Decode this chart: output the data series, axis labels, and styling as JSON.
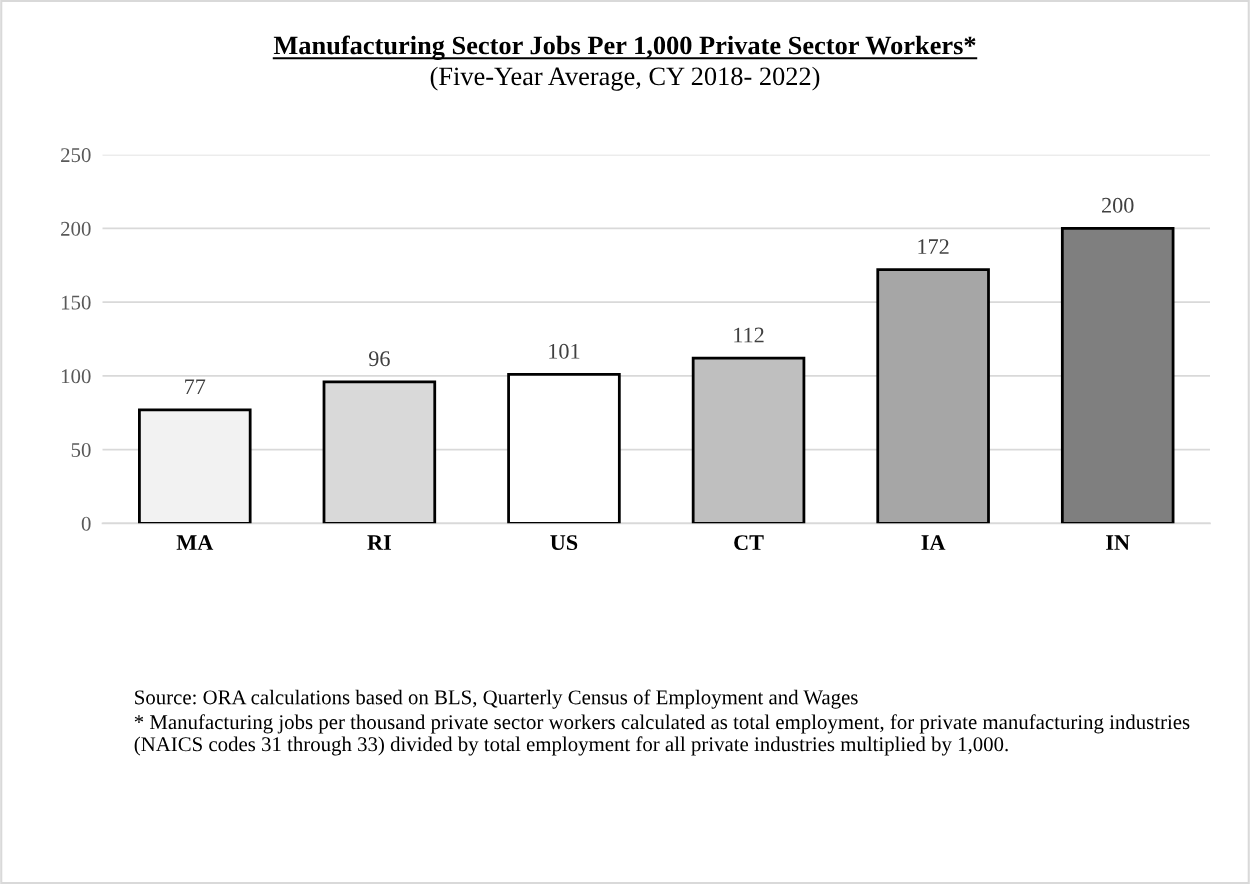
{
  "chart_data": {
    "type": "bar",
    "title": "Manufacturing Sector Jobs Per 1,000 Private Sector Workers*",
    "subtitle": "(Five-Year Average, CY 2018- 2022)",
    "categories": [
      "MA",
      "RI",
      "US",
      "CT",
      "IA",
      "IN"
    ],
    "values": [
      77,
      96,
      101,
      112,
      172,
      200
    ],
    "colors": [
      "#f2f2f2",
      "#d9d9d9",
      "#ffffff",
      "#bfbfbf",
      "#a6a6a6",
      "#7f7f7f"
    ],
    "ylim": [
      0,
      250
    ],
    "yticks": [
      0,
      50,
      100,
      150,
      200,
      250
    ],
    "grid": "y",
    "data_labels": true,
    "annotations": [
      "Source: ORA calculations based on BLS, Quarterly Census of Employment and Wages",
      "* Manufacturing jobs per thousand private sector workers calculated as total employment, for private manufacturing industries (NAICS codes 31 through 33) divided by total employment for all private industries multiplied by 1,000."
    ]
  }
}
